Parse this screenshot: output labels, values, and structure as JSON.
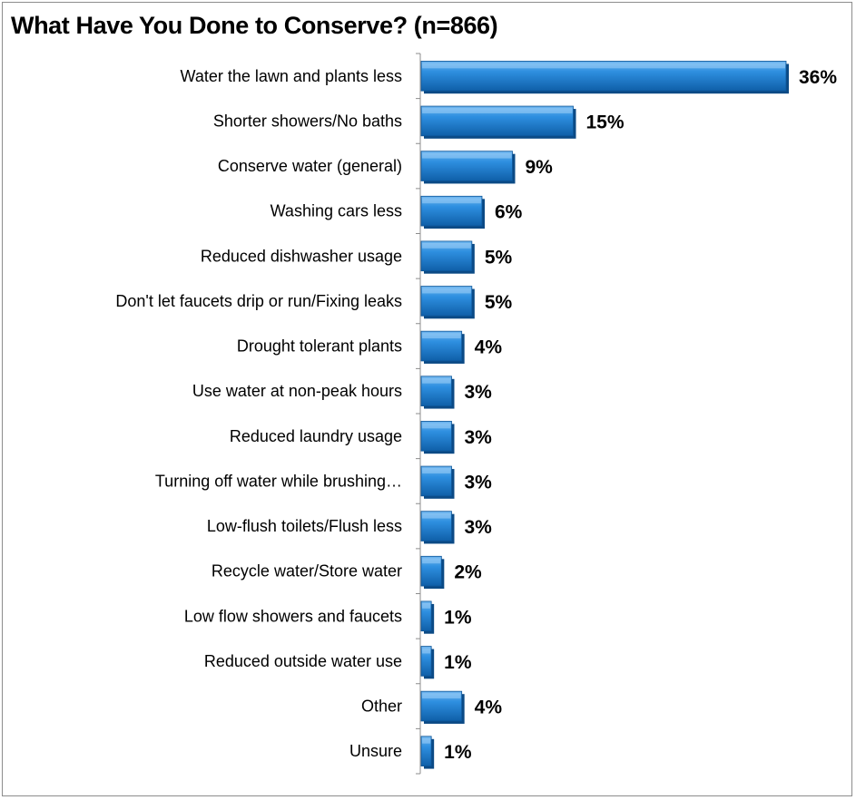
{
  "chart_data": {
    "type": "bar",
    "orientation": "horizontal",
    "title": "What Have You Done to Conserve? (n=866)",
    "categories": [
      "Water the lawn and plants less",
      "Shorter showers/No baths",
      "Conserve water (general)",
      "Washing cars less",
      "Reduced dishwasher usage",
      "Don't let faucets drip or run/Fixing leaks",
      "Drought tolerant plants",
      "Use water at non-peak hours",
      "Reduced laundry usage",
      "Turning off water while brushing…",
      "Low-flush toilets/Flush less",
      "Recycle water/Store water",
      "Low flow showers and faucets",
      "Reduced outside water use",
      "Other",
      "Unsure"
    ],
    "values": [
      36,
      15,
      9,
      6,
      5,
      5,
      4,
      3,
      3,
      3,
      3,
      2,
      1,
      1,
      4,
      1
    ],
    "value_labels": [
      "36%",
      "15%",
      "9%",
      "6%",
      "5%",
      "5%",
      "4%",
      "3%",
      "3%",
      "3%",
      "3%",
      "2%",
      "1%",
      "1%",
      "4%",
      "1%"
    ],
    "unit": "%",
    "xlim": [
      0,
      36
    ],
    "grid": false,
    "legend": "none",
    "bar_color": "#1f78c8"
  }
}
